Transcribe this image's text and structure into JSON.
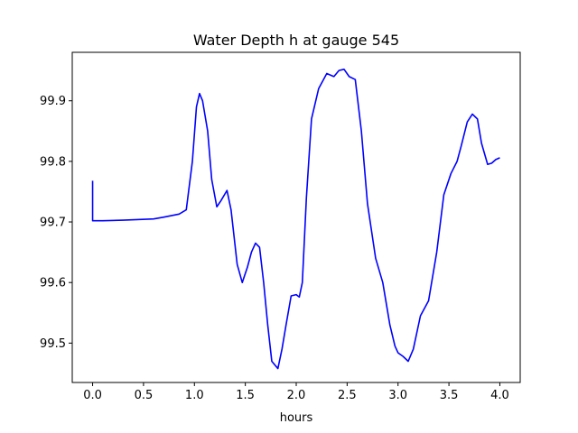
{
  "chart_data": {
    "type": "line",
    "title": "Water Depth h at gauge 545",
    "xlabel": "hours",
    "ylabel": "",
    "xlim": [
      -0.2,
      4.2
    ],
    "ylim": [
      99.435,
      99.98
    ],
    "xticks": [
      0.0,
      0.5,
      1.0,
      1.5,
      2.0,
      2.5,
      3.0,
      3.5,
      4.0
    ],
    "xtick_labels": [
      "0.0",
      "0.5",
      "1.0",
      "1.5",
      "2.0",
      "2.5",
      "3.0",
      "3.5",
      "4.0"
    ],
    "yticks": [
      99.5,
      99.6,
      99.7,
      99.8,
      99.9
    ],
    "ytick_labels": [
      "99.5",
      "99.6",
      "99.7",
      "99.8",
      "99.9"
    ],
    "grid": false,
    "series": [
      {
        "color": "#0000ff",
        "x": [
          0.0,
          0.0,
          0.0,
          0.1,
          0.3,
          0.6,
          0.7,
          0.85,
          0.92,
          0.98,
          1.02,
          1.05,
          1.08,
          1.13,
          1.17,
          1.22,
          1.26,
          1.32,
          1.36,
          1.42,
          1.47,
          1.52,
          1.56,
          1.6,
          1.64,
          1.68,
          1.72,
          1.76,
          1.82,
          1.86,
          1.9,
          1.95,
          2.0,
          2.03,
          2.06,
          2.1,
          2.15,
          2.22,
          2.3,
          2.37,
          2.42,
          2.47,
          2.52,
          2.58,
          2.64,
          2.7,
          2.78,
          2.85,
          2.92,
          2.97,
          3.0,
          3.05,
          3.1,
          3.15,
          3.22,
          3.3,
          3.38,
          3.45,
          3.52,
          3.58,
          3.62,
          3.68,
          3.73,
          3.78,
          3.82,
          3.88,
          3.92,
          3.96,
          4.0
        ],
        "y": [
          99.768,
          99.702,
          99.702,
          99.702,
          99.703,
          99.705,
          99.708,
          99.713,
          99.72,
          99.8,
          99.89,
          99.912,
          99.9,
          99.85,
          99.77,
          99.725,
          99.735,
          99.752,
          99.72,
          99.63,
          99.6,
          99.625,
          99.65,
          99.665,
          99.658,
          99.6,
          99.53,
          99.47,
          99.458,
          99.49,
          99.53,
          99.578,
          99.58,
          99.576,
          99.6,
          99.74,
          99.87,
          99.92,
          99.945,
          99.94,
          99.95,
          99.952,
          99.94,
          99.935,
          99.85,
          99.73,
          99.64,
          99.6,
          99.53,
          99.495,
          99.484,
          99.478,
          99.47,
          99.49,
          99.545,
          99.57,
          99.65,
          99.745,
          99.78,
          99.8,
          99.825,
          99.865,
          99.878,
          99.87,
          99.83,
          99.795,
          99.797,
          99.803,
          99.806
        ]
      }
    ]
  }
}
